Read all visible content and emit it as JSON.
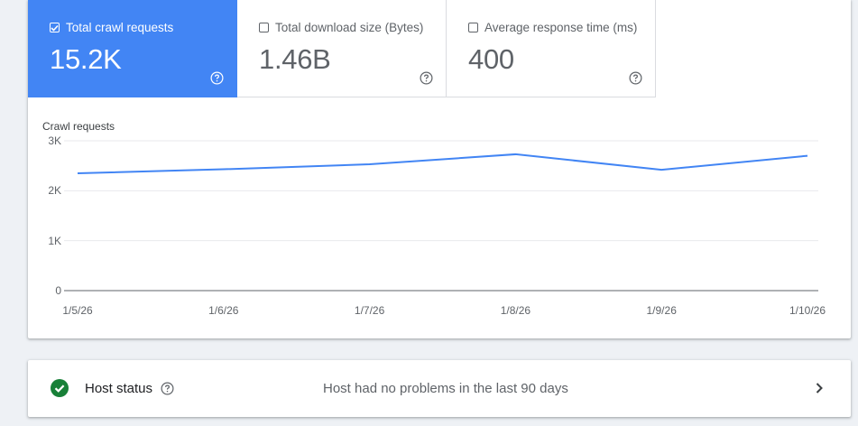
{
  "metrics": [
    {
      "label": "Total crawl requests",
      "value": "15.2K",
      "checked": true
    },
    {
      "label": "Total download size (Bytes)",
      "value": "1.46B",
      "checked": false
    },
    {
      "label": "Average response time (ms)",
      "value": "400",
      "checked": false
    }
  ],
  "colors": {
    "accent": "#4285f4",
    "line": "#4285f4",
    "success": "#188038"
  },
  "icons": {
    "help": "help-circle-icon",
    "check": "check-icon",
    "status": "check-circle-icon",
    "chevron": "chevron-right-icon"
  },
  "chart_data": {
    "type": "line",
    "title": "Crawl requests",
    "categories": [
      "1/5/26",
      "1/6/26",
      "1/7/26",
      "1/8/26",
      "1/9/26",
      "1/10/26"
    ],
    "series": [
      {
        "values": [
          2350,
          2430,
          2530,
          2730,
          2420,
          2700
        ]
      }
    ],
    "ylim": [
      0,
      3000
    ],
    "yticks": [
      {
        "v": 0,
        "label": "0"
      },
      {
        "v": 1000,
        "label": "1K"
      },
      {
        "v": 2000,
        "label": "2K"
      },
      {
        "v": 3000,
        "label": "3K"
      }
    ],
    "grid": true
  },
  "host_status": {
    "label": "Host status",
    "message": "Host had no problems in the last 90 days"
  }
}
